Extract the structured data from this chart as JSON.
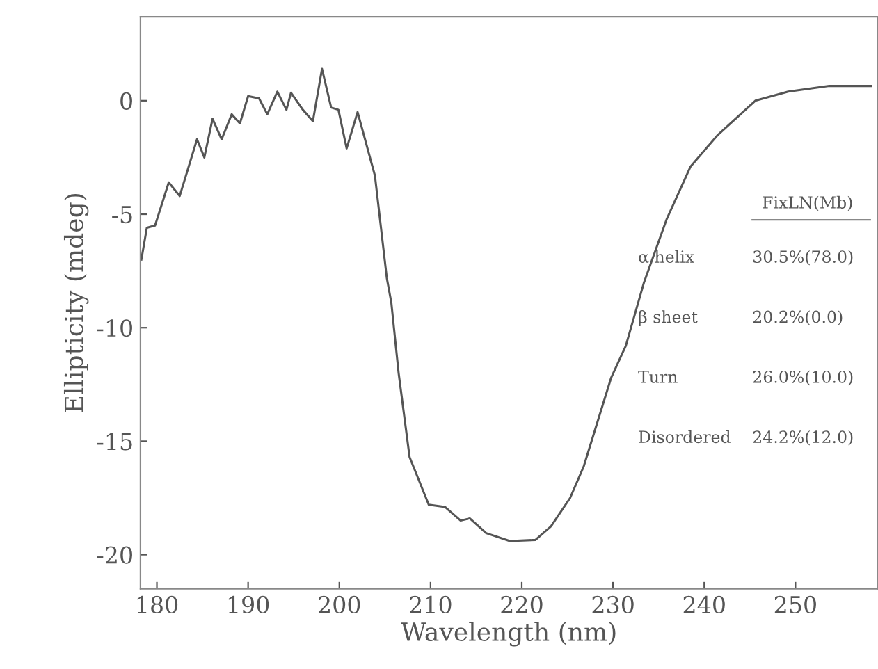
{
  "chart_data": {
    "type": "line",
    "xlabel": "Wavelength (nm)",
    "ylabel": "Ellipticity (mdeg)",
    "x": [
      178.3,
      178.9,
      179.8,
      181.3,
      182.5,
      184.4,
      185.2,
      186.1,
      187.1,
      188.2,
      189.1,
      190.0,
      191.2,
      192.1,
      193.2,
      194.2,
      194.7,
      196.0,
      197.1,
      198.1,
      199.1,
      199.9,
      200.8,
      202.0,
      203.9,
      205.2,
      205.7,
      206.5,
      207.7,
      209.8,
      211.6,
      213.3,
      214.3,
      216.1,
      218.7,
      221.5,
      223.2,
      225.3,
      226.8,
      229.8,
      231.4,
      233.4,
      235.9,
      238.5,
      241.5,
      245.6,
      249.2,
      253.7,
      258.3
    ],
    "series": [
      {
        "color": "#555555",
        "values": [
          -7.0,
          -5.6,
          -5.5,
          -3.6,
          -4.2,
          -1.7,
          -2.5,
          -0.8,
          -1.7,
          -0.6,
          -1.0,
          0.2,
          0.1,
          -0.6,
          0.4,
          -0.4,
          0.35,
          -0.4,
          -0.9,
          1.4,
          -0.3,
          -0.4,
          -2.1,
          -0.5,
          -3.3,
          -7.8,
          -8.9,
          -12.0,
          -15.7,
          -17.8,
          -17.9,
          -18.5,
          -18.4,
          -19.05,
          -19.4,
          -19.35,
          -18.75,
          -17.5,
          -16.1,
          -12.2,
          -10.8,
          -8.0,
          -5.2,
          -2.9,
          -1.5,
          0.0,
          0.4,
          0.65,
          0.65
        ]
      }
    ],
    "xlim": [
      178.2,
      259
    ],
    "ylim": [
      -21.5,
      3.7
    ],
    "xticks": [
      180,
      190,
      200,
      210,
      220,
      230,
      240,
      250
    ],
    "yticks": [
      0,
      -5,
      -10,
      -15,
      -20
    ],
    "grid": false,
    "legend": false,
    "annotations": [
      "FixLN(Mb)",
      "α helix",
      "30.5%(78.0)",
      "β sheet",
      "20.2%(0.0)",
      "Turn",
      "26.0%(10.0)",
      "Disordered",
      "24.2%(12.0)"
    ]
  }
}
